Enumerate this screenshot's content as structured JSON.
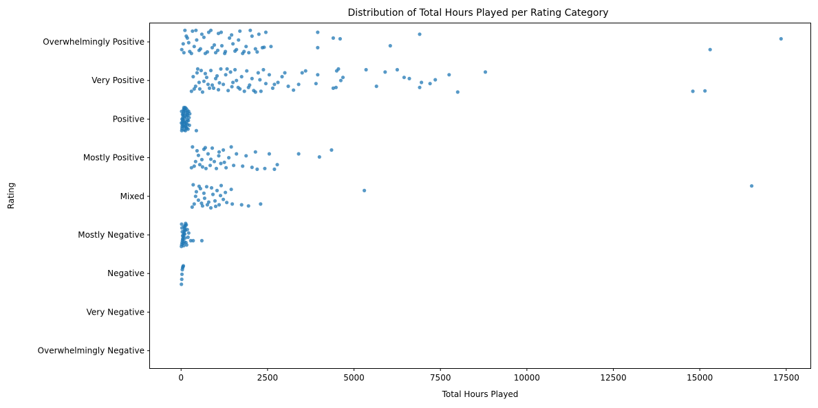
{
  "chart_data": {
    "type": "scatter",
    "title": "Distribution of Total Hours Played per Rating Category",
    "xlabel": "Total Hours Played",
    "ylabel": "Rating",
    "xlim": [
      -900,
      18200
    ],
    "x_ticks": [
      0,
      2500,
      5000,
      7500,
      10000,
      12500,
      15000,
      17500
    ],
    "x_tick_labels": [
      "0",
      "2500",
      "5000",
      "7500",
      "10000",
      "12500",
      "15000",
      "17500"
    ],
    "categories": [
      "Overwhelmingly Positive",
      "Very Positive",
      "Positive",
      "Mostly Positive",
      "Mixed",
      "Mostly Negative",
      "Negative",
      "Very Negative",
      "Overwhelmingly Negative"
    ],
    "grid": false,
    "point_color": "#1f77b4",
    "series": [
      {
        "category": "Overwhelmingly Positive",
        "points": [
          [
            20,
            0.2
          ],
          [
            60,
            0.05
          ],
          [
            110,
            -0.3
          ],
          [
            180,
            -0.1
          ],
          [
            250,
            0.25
          ],
          [
            330,
            -0.28
          ],
          [
            380,
            0.12
          ],
          [
            450,
            -0.05
          ],
          [
            520,
            0.22
          ],
          [
            600,
            -0.2
          ],
          [
            700,
            0.3
          ],
          [
            800,
            -0.25
          ],
          [
            900,
            0.15
          ],
          [
            1000,
            0.28
          ],
          [
            1080,
            -0.22
          ],
          [
            1180,
            0.1
          ],
          [
            1280,
            0.25
          ],
          [
            1400,
            -0.1
          ],
          [
            1500,
            0.05
          ],
          [
            1600,
            0.2
          ],
          [
            1700,
            -0.28
          ],
          [
            1780,
            0.3
          ],
          [
            1880,
            0.12
          ],
          [
            1960,
            0.28
          ],
          [
            2050,
            -0.15
          ],
          [
            2150,
            0.18
          ],
          [
            2250,
            -0.2
          ],
          [
            2350,
            0.15
          ],
          [
            2450,
            -0.25
          ],
          [
            2600,
            0.12
          ],
          [
            3950,
            0.15
          ],
          [
            3950,
            -0.25
          ],
          [
            4400,
            -0.1
          ],
          [
            4600,
            -0.08
          ],
          [
            6050,
            0.1
          ],
          [
            6900,
            -0.2
          ],
          [
            15300,
            0.2
          ],
          [
            17350,
            -0.08
          ],
          [
            80,
            0.28
          ],
          [
            150,
            -0.15
          ],
          [
            220,
            0.02
          ],
          [
            300,
            0.3
          ],
          [
            430,
            -0.3
          ],
          [
            560,
            0.18
          ],
          [
            660,
            -0.12
          ],
          [
            760,
            0.26
          ],
          [
            860,
            -0.3
          ],
          [
            960,
            0.08
          ],
          [
            1060,
            0.22
          ],
          [
            1160,
            -0.25
          ],
          [
            1260,
            0.3
          ],
          [
            1460,
            -0.18
          ],
          [
            1560,
            0.24
          ],
          [
            1660,
            -0.05
          ],
          [
            1820,
            0.25
          ],
          [
            2000,
            -0.3
          ],
          [
            2200,
            0.26
          ],
          [
            2400,
            0.14
          ]
        ]
      },
      {
        "category": "Very Positive",
        "points": [
          [
            2800,
            0.05
          ],
          [
            2920,
            -0.1
          ],
          [
            3000,
            -0.2
          ],
          [
            3100,
            0.15
          ],
          [
            3250,
            0.25
          ],
          [
            3400,
            0.1
          ],
          [
            3500,
            -0.2
          ],
          [
            3600,
            -0.25
          ],
          [
            3900,
            0.08
          ],
          [
            3950,
            -0.15
          ],
          [
            4400,
            0.2
          ],
          [
            4480,
            0.18
          ],
          [
            4500,
            -0.25
          ],
          [
            4550,
            -0.3
          ],
          [
            4620,
            0.0
          ],
          [
            4680,
            -0.08
          ],
          [
            5350,
            -0.28
          ],
          [
            5650,
            0.15
          ],
          [
            5900,
            -0.22
          ],
          [
            6250,
            -0.28
          ],
          [
            6450,
            -0.08
          ],
          [
            6600,
            -0.05
          ],
          [
            6900,
            0.18
          ],
          [
            6950,
            0.05
          ],
          [
            7200,
            0.08
          ],
          [
            7350,
            -0.02
          ],
          [
            7750,
            -0.15
          ],
          [
            8000,
            0.3
          ],
          [
            8800,
            -0.22
          ],
          [
            14800,
            0.28
          ],
          [
            15150,
            0.27
          ],
          [
            380,
            0.22
          ],
          [
            480,
            -0.3
          ],
          [
            520,
            0.05
          ],
          [
            620,
            0.3
          ],
          [
            700,
            -0.18
          ],
          [
            780,
            0.1
          ],
          [
            860,
            -0.26
          ],
          [
            940,
            0.2
          ],
          [
            1000,
            -0.05
          ],
          [
            1080,
            0.24
          ],
          [
            1150,
            -0.3
          ],
          [
            1220,
            0.1
          ],
          [
            1290,
            -0.15
          ],
          [
            1360,
            0.26
          ],
          [
            1430,
            -0.22
          ],
          [
            1500,
            0.05
          ],
          [
            1560,
            -0.28
          ],
          [
            1650,
            0.18
          ],
          [
            1750,
            -0.1
          ],
          [
            1830,
            0.28
          ],
          [
            1900,
            -0.25
          ],
          [
            1980,
            0.12
          ],
          [
            2050,
            -0.05
          ],
          [
            2150,
            0.3
          ],
          [
            2230,
            -0.2
          ],
          [
            2310,
            0.28
          ],
          [
            2380,
            -0.28
          ],
          [
            2450,
            0.08
          ],
          [
            2550,
            -0.15
          ],
          [
            2650,
            0.2
          ],
          [
            300,
            0.28
          ],
          [
            350,
            -0.1
          ],
          [
            420,
            0.15
          ],
          [
            460,
            -0.2
          ],
          [
            540,
            0.22
          ],
          [
            580,
            -0.26
          ],
          [
            660,
            0.02
          ],
          [
            740,
            -0.08
          ],
          [
            820,
            0.2
          ],
          [
            900,
            0.12
          ],
          [
            1040,
            -0.12
          ],
          [
            1110,
            0.06
          ],
          [
            1330,
            -0.3
          ],
          [
            1470,
            0.16
          ],
          [
            1700,
            0.22
          ],
          [
            2100,
            0.26
          ],
          [
            2280,
            -0.02
          ],
          [
            1600,
            0.0
          ],
          [
            1950,
            0.18
          ],
          [
            2700,
            0.1
          ]
        ]
      },
      {
        "category": "Positive",
        "points": [
          [
            20,
            0.3
          ],
          [
            30,
            0.2
          ],
          [
            40,
            0.1
          ],
          [
            50,
            0.0
          ],
          [
            60,
            -0.1
          ],
          [
            70,
            -0.2
          ],
          [
            80,
            -0.3
          ],
          [
            25,
            0.25
          ],
          [
            35,
            0.15
          ],
          [
            45,
            0.05
          ],
          [
            55,
            -0.05
          ],
          [
            65,
            -0.15
          ],
          [
            75,
            -0.25
          ],
          [
            90,
            0.28
          ],
          [
            100,
            0.12
          ],
          [
            110,
            -0.08
          ],
          [
            120,
            -0.22
          ],
          [
            130,
            0.18
          ],
          [
            140,
            -0.28
          ],
          [
            150,
            0.22
          ],
          [
            160,
            0.06
          ],
          [
            170,
            -0.12
          ],
          [
            180,
            0.02
          ],
          [
            190,
            -0.18
          ],
          [
            200,
            0.26
          ],
          [
            95,
            -0.02
          ],
          [
            105,
            0.08
          ],
          [
            115,
            -0.3
          ],
          [
            125,
            0.3
          ],
          [
            135,
            -0.16
          ],
          [
            145,
            0.12
          ],
          [
            155,
            -0.06
          ],
          [
            165,
            0.24
          ],
          [
            175,
            -0.24
          ],
          [
            185,
            0.14
          ],
          [
            195,
            -0.1
          ],
          [
            210,
            0.04
          ],
          [
            220,
            -0.2
          ],
          [
            230,
            -0.04
          ],
          [
            240,
            0.16
          ],
          [
            250,
            -0.14
          ],
          [
            440,
            0.3
          ],
          [
            10,
            0.1
          ],
          [
            15,
            -0.2
          ],
          [
            28,
            0.0
          ],
          [
            42,
            -0.12
          ],
          [
            58,
            0.18
          ],
          [
            72,
            0.05
          ],
          [
            88,
            -0.26
          ],
          [
            102,
            0.2
          ]
        ]
      },
      {
        "category": "Mostly Positive",
        "points": [
          [
            2050,
            0.25
          ],
          [
            2200,
            0.3
          ],
          [
            2420,
            0.28
          ],
          [
            2700,
            0.3
          ],
          [
            2780,
            0.18
          ],
          [
            2150,
            -0.15
          ],
          [
            2550,
            -0.1
          ],
          [
            3400,
            -0.1
          ],
          [
            4000,
            -0.02
          ],
          [
            4350,
            -0.2
          ],
          [
            380,
            0.22
          ],
          [
            460,
            -0.18
          ],
          [
            540,
            0.18
          ],
          [
            600,
            0.05
          ],
          [
            660,
            -0.22
          ],
          [
            720,
            0.28
          ],
          [
            780,
            -0.1
          ],
          [
            840,
            0.2
          ],
          [
            900,
            -0.25
          ],
          [
            960,
            0.1
          ],
          [
            1020,
            0.28
          ],
          [
            1090,
            -0.05
          ],
          [
            1150,
            0.15
          ],
          [
            1220,
            -0.2
          ],
          [
            1300,
            0.26
          ],
          [
            1380,
            0.0
          ],
          [
            1450,
            -0.28
          ],
          [
            1520,
            0.2
          ],
          [
            1600,
            -0.1
          ],
          [
            300,
            0.26
          ],
          [
            330,
            -0.28
          ],
          [
            420,
            0.1
          ],
          [
            500,
            -0.06
          ],
          [
            620,
            0.24
          ],
          [
            700,
            -0.26
          ],
          [
            860,
            0.04
          ],
          [
            1100,
            -0.15
          ],
          [
            1250,
            0.12
          ],
          [
            1780,
            0.22
          ],
          [
            1880,
            -0.05
          ]
        ]
      },
      {
        "category": "Mixed",
        "points": [
          [
            5300,
            -0.15
          ],
          [
            16500,
            -0.27
          ],
          [
            2300,
            0.2
          ],
          [
            1950,
            0.25
          ],
          [
            1480,
            0.2
          ],
          [
            1450,
            -0.18
          ],
          [
            380,
            0.2
          ],
          [
            440,
            -0.12
          ],
          [
            500,
            0.1
          ],
          [
            560,
            -0.2
          ],
          [
            620,
            0.25
          ],
          [
            680,
            0.05
          ],
          [
            740,
            -0.25
          ],
          [
            800,
            0.15
          ],
          [
            860,
            0.3
          ],
          [
            920,
            -0.05
          ],
          [
            980,
            0.12
          ],
          [
            1040,
            -0.15
          ],
          [
            1100,
            0.22
          ],
          [
            1160,
            -0.28
          ],
          [
            1220,
            0.08
          ],
          [
            1280,
            -0.1
          ],
          [
            320,
            0.28
          ],
          [
            350,
            -0.3
          ],
          [
            420,
            0.0
          ],
          [
            520,
            -0.26
          ],
          [
            590,
            0.18
          ],
          [
            660,
            -0.08
          ],
          [
            760,
            0.22
          ],
          [
            880,
            -0.22
          ],
          [
            1000,
            0.26
          ],
          [
            1140,
            -0.02
          ],
          [
            1320,
            0.16
          ],
          [
            1750,
            0.22
          ]
        ]
      },
      {
        "category": "Mostly Negative",
        "points": [
          [
            10,
            0.3
          ],
          [
            20,
            0.25
          ],
          [
            30,
            0.2
          ],
          [
            40,
            0.15
          ],
          [
            50,
            0.1
          ],
          [
            60,
            0.05
          ],
          [
            70,
            0.0
          ],
          [
            80,
            -0.05
          ],
          [
            90,
            -0.1
          ],
          [
            100,
            -0.15
          ],
          [
            110,
            -0.2
          ],
          [
            120,
            -0.25
          ],
          [
            130,
            -0.3
          ],
          [
            15,
            -0.28
          ],
          [
            25,
            -0.18
          ],
          [
            35,
            -0.08
          ],
          [
            45,
            0.02
          ],
          [
            55,
            0.12
          ],
          [
            65,
            0.22
          ],
          [
            75,
            0.28
          ],
          [
            85,
            -0.22
          ],
          [
            95,
            0.18
          ],
          [
            105,
            -0.02
          ],
          [
            115,
            0.08
          ],
          [
            125,
            -0.12
          ],
          [
            140,
            0.2
          ],
          [
            150,
            -0.26
          ],
          [
            160,
            0.26
          ],
          [
            180,
            -0.14
          ],
          [
            200,
            0.06
          ],
          [
            280,
            0.15
          ],
          [
            350,
            0.15
          ],
          [
            600,
            0.15
          ],
          [
            220,
            -0.05
          ]
        ]
      },
      {
        "category": "Negative",
        "points": [
          [
            10,
            0.28
          ],
          [
            20,
            0.15
          ],
          [
            25,
            0.02
          ],
          [
            35,
            -0.1
          ],
          [
            45,
            -0.15
          ],
          [
            55,
            -0.18
          ],
          [
            65,
            -0.2
          ]
        ]
      },
      {
        "category": "Very Negative",
        "points": []
      },
      {
        "category": "Overwhelmingly Negative",
        "points": []
      }
    ]
  }
}
